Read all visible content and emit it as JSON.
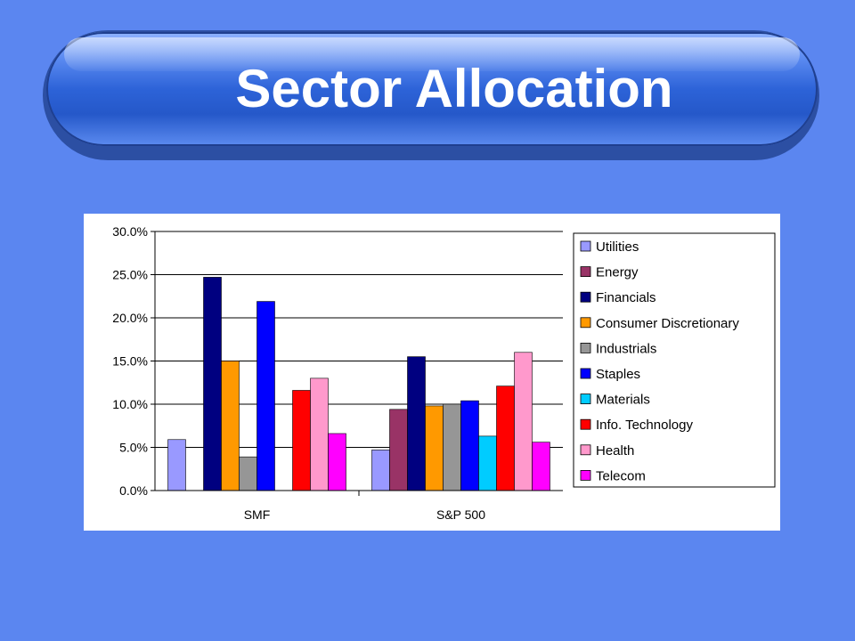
{
  "slide": {
    "title": "Sector Allocation"
  },
  "chart_data": {
    "type": "bar",
    "title": "",
    "xlabel": "",
    "ylabel": "",
    "ylim": [
      0,
      30
    ],
    "yticks": [
      "0.0%",
      "5.0%",
      "10.0%",
      "15.0%",
      "20.0%",
      "25.0%",
      "30.0%"
    ],
    "grid": true,
    "legend_position": "right",
    "categories": [
      "SMF",
      "S&P 500"
    ],
    "series": [
      {
        "name": "Utilities",
        "color": "#9999ff",
        "values": [
          5.9,
          4.7
        ]
      },
      {
        "name": "Energy",
        "color": "#993366",
        "values": [
          null,
          9.4
        ]
      },
      {
        "name": "Financials",
        "color": "#000080",
        "values": [
          24.7,
          15.5
        ]
      },
      {
        "name": "Consumer Discretionary",
        "color": "#ff9900",
        "values": [
          15.0,
          9.8
        ]
      },
      {
        "name": "Industrials",
        "color": "#969696",
        "values": [
          3.9,
          10.0
        ]
      },
      {
        "name": "Staples",
        "color": "#0000ff",
        "values": [
          21.9,
          10.4
        ]
      },
      {
        "name": "Materials",
        "color": "#00ccff",
        "values": [
          null,
          6.3
        ]
      },
      {
        "name": "Info. Technology",
        "color": "#ff0000",
        "values": [
          11.6,
          12.1
        ]
      },
      {
        "name": "Health",
        "color": "#ff99cc",
        "values": [
          13.0,
          16.0
        ]
      },
      {
        "name": "Telecom",
        "color": "#ff00ff",
        "values": [
          6.6,
          5.6
        ]
      }
    ]
  }
}
